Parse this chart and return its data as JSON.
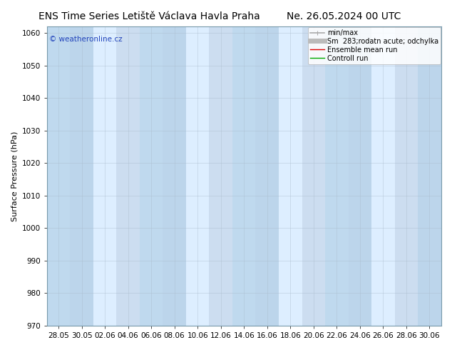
{
  "title_left": "ENS Time Series Letiště Václava Havla Praha",
  "title_right": "Ne. 26.05.2024 00 UTC",
  "ylabel": "Surface Pressure (hPa)",
  "ylim": [
    970,
    1062
  ],
  "yticks": [
    970,
    980,
    990,
    1000,
    1010,
    1020,
    1030,
    1040,
    1050,
    1060
  ],
  "plot_bg_color": "#ccddf0",
  "fig_bg_color": "#ffffff",
  "watermark": "© weatheronline.cz",
  "watermark_color": "#2244bb",
  "legend_items": [
    {
      "label": "min/max",
      "color": "#aaaaaa",
      "lw": 1.2
    },
    {
      "label": "Sm  283;rodatn acute; odchylka",
      "color": "#bbbbbb",
      "lw": 5
    },
    {
      "label": "Ensemble mean run",
      "color": "#dd0000",
      "lw": 1.0
    },
    {
      "label": "Controll run",
      "color": "#00aa00",
      "lw": 1.0
    }
  ],
  "xticklabels": [
    "28.05",
    "30.05",
    "02.06",
    "04.06",
    "06.06",
    "08.06",
    "10.06",
    "12.06",
    "14.06",
    "16.06",
    "18.06",
    "20.06",
    "22.06",
    "24.06",
    "26.06",
    "28.06",
    "30.06"
  ],
  "stripe_color": "#ddeeff",
  "stripe_alpha": 1.0,
  "grid_color": "#aabbcc",
  "title_fontsize": 10,
  "axis_fontsize": 8,
  "tick_fontsize": 7.5,
  "legend_fontsize": 7
}
